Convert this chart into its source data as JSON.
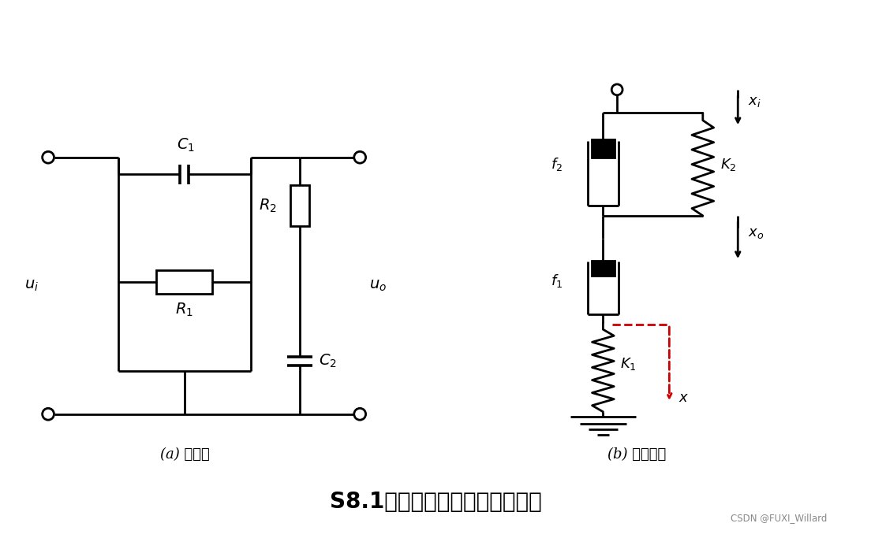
{
  "bg_color": "#ffffff",
  "title": "S8.1：电网络与机械系统原理图",
  "title_fontsize": 20,
  "title_fontweight": "bold",
  "label_a": "(a) 电网络",
  "label_b": "(b) 机械系统",
  "watermark": "CSDN @FUXI_Willard",
  "line_color": "#000000",
  "red_color": "#cc0000",
  "lw": 2.0
}
